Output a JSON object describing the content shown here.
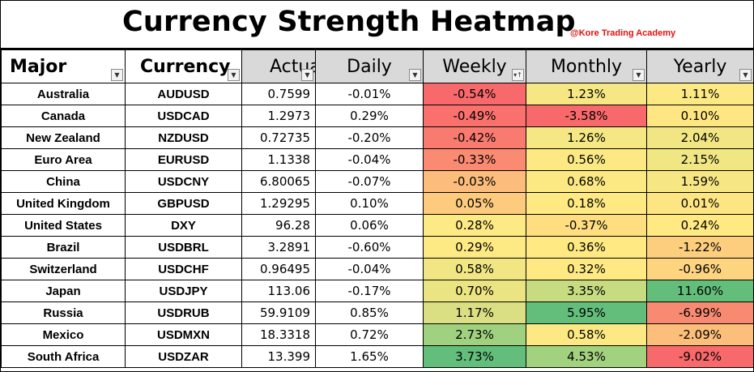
{
  "title": "Currency Strength Heatmap",
  "credit": "@Kore Trading Academy",
  "columns": [
    "Major",
    "Currency",
    "Actual",
    "Daily",
    "Weekly",
    "Monthly",
    "Yearly"
  ],
  "colors": {
    "deep_red": "#f8696b",
    "red": "#f98370",
    "orange": "#fbaf78",
    "light_orange": "#fdd17f",
    "yellow": "#fee983",
    "light_yellow": "#f4e783",
    "yellow_green": "#d4df82",
    "light_green": "#a3d27f",
    "green": "#7cc67b",
    "deep_green": "#63be7b",
    "header_gray": "#d9d9d9",
    "credit_red": "#e01010"
  },
  "rows": [
    {
      "major": "Australia",
      "currency": "AUDUSD",
      "actual": "0.7599",
      "daily": "-0.01%",
      "weekly": "-0.54%",
      "monthly": "1.23%",
      "yearly": "1.11%",
      "weekly_color": "#f8696b",
      "monthly_color": "#f6e784",
      "yearly_color": "#fde984"
    },
    {
      "major": "Canada",
      "currency": "USDCAD",
      "actual": "1.2973",
      "daily": "0.29%",
      "weekly": "-0.49%",
      "monthly": "-3.58%",
      "yearly": "0.10%",
      "weekly_color": "#f9706d",
      "monthly_color": "#f8696b",
      "yearly_color": "#fee783"
    },
    {
      "major": "New Zealand",
      "currency": "NZDUSD",
      "actual": "0.72735",
      "daily": "-0.20%",
      "weekly": "-0.42%",
      "monthly": "1.26%",
      "yearly": "2.04%",
      "weekly_color": "#f97a6f",
      "monthly_color": "#f5e784",
      "yearly_color": "#f1e683"
    },
    {
      "major": "Euro Area",
      "currency": "EURUSD",
      "actual": "1.1338",
      "daily": "-0.04%",
      "weekly": "-0.33%",
      "monthly": "0.56%",
      "yearly": "2.15%",
      "weekly_color": "#fa8a72",
      "monthly_color": "#fde984",
      "yearly_color": "#f0e683"
    },
    {
      "major": "China",
      "currency": "USDCNY",
      "actual": "6.80065",
      "daily": "-0.07%",
      "weekly": "-0.03%",
      "monthly": "0.68%",
      "yearly": "1.59%",
      "weekly_color": "#fcbc7b",
      "monthly_color": "#fce984",
      "yearly_color": "#f7e784"
    },
    {
      "major": "United Kingdom",
      "currency": "GBPUSD",
      "actual": "1.29295",
      "daily": "0.10%",
      "weekly": "0.05%",
      "monthly": "0.18%",
      "yearly": "0.01%",
      "weekly_color": "#fdcb7e",
      "monthly_color": "#fee983",
      "yearly_color": "#fee583"
    },
    {
      "major": "United States",
      "currency": "DXY",
      "actual": "96.28",
      "daily": "0.06%",
      "weekly": "0.28%",
      "monthly": "-0.37%",
      "yearly": "0.24%",
      "weekly_color": "#feea84",
      "monthly_color": "#fede81",
      "yearly_color": "#fee983"
    },
    {
      "major": "Brazil",
      "currency": "USDBRL",
      "actual": "3.2891",
      "daily": "-0.60%",
      "weekly": "0.29%",
      "monthly": "0.36%",
      "yearly": "-1.22%",
      "weekly_color": "#feea84",
      "monthly_color": "#fee983",
      "yearly_color": "#fdce7e"
    },
    {
      "major": "Switzerland",
      "currency": "USDCHF",
      "actual": "0.96495",
      "daily": "-0.04%",
      "weekly": "0.58%",
      "monthly": "0.32%",
      "yearly": "-0.96%",
      "weekly_color": "#f1e683",
      "monthly_color": "#fee983",
      "yearly_color": "#fdd47f"
    },
    {
      "major": "Japan",
      "currency": "USDJPY",
      "actual": "113.06",
      "daily": "-0.17%",
      "weekly": "0.70%",
      "monthly": "3.35%",
      "yearly": "11.60%",
      "weekly_color": "#ebe482",
      "monthly_color": "#c7db81",
      "yearly_color": "#63be7b"
    },
    {
      "major": "Russia",
      "currency": "USDRUB",
      "actual": "59.9109",
      "daily": "0.85%",
      "weekly": "1.17%",
      "monthly": "5.95%",
      "yearly": "-6.99%",
      "weekly_color": "#d9df82",
      "monthly_color": "#63be7b",
      "yearly_color": "#f98a72"
    },
    {
      "major": "Mexico",
      "currency": "USDMXN",
      "actual": "18.3318",
      "daily": "0.72%",
      "weekly": "2.73%",
      "monthly": "0.58%",
      "yearly": "-2.09%",
      "weekly_color": "#a0d17f",
      "monthly_color": "#fde984",
      "yearly_color": "#fcbf7b"
    },
    {
      "major": "South Africa",
      "currency": "USDZAR",
      "actual": "13.399",
      "daily": "1.65%",
      "weekly": "3.73%",
      "monthly": "4.53%",
      "yearly": "-9.02%",
      "weekly_color": "#63be7b",
      "monthly_color": "#a3d27f",
      "yearly_color": "#f8696b"
    }
  ]
}
